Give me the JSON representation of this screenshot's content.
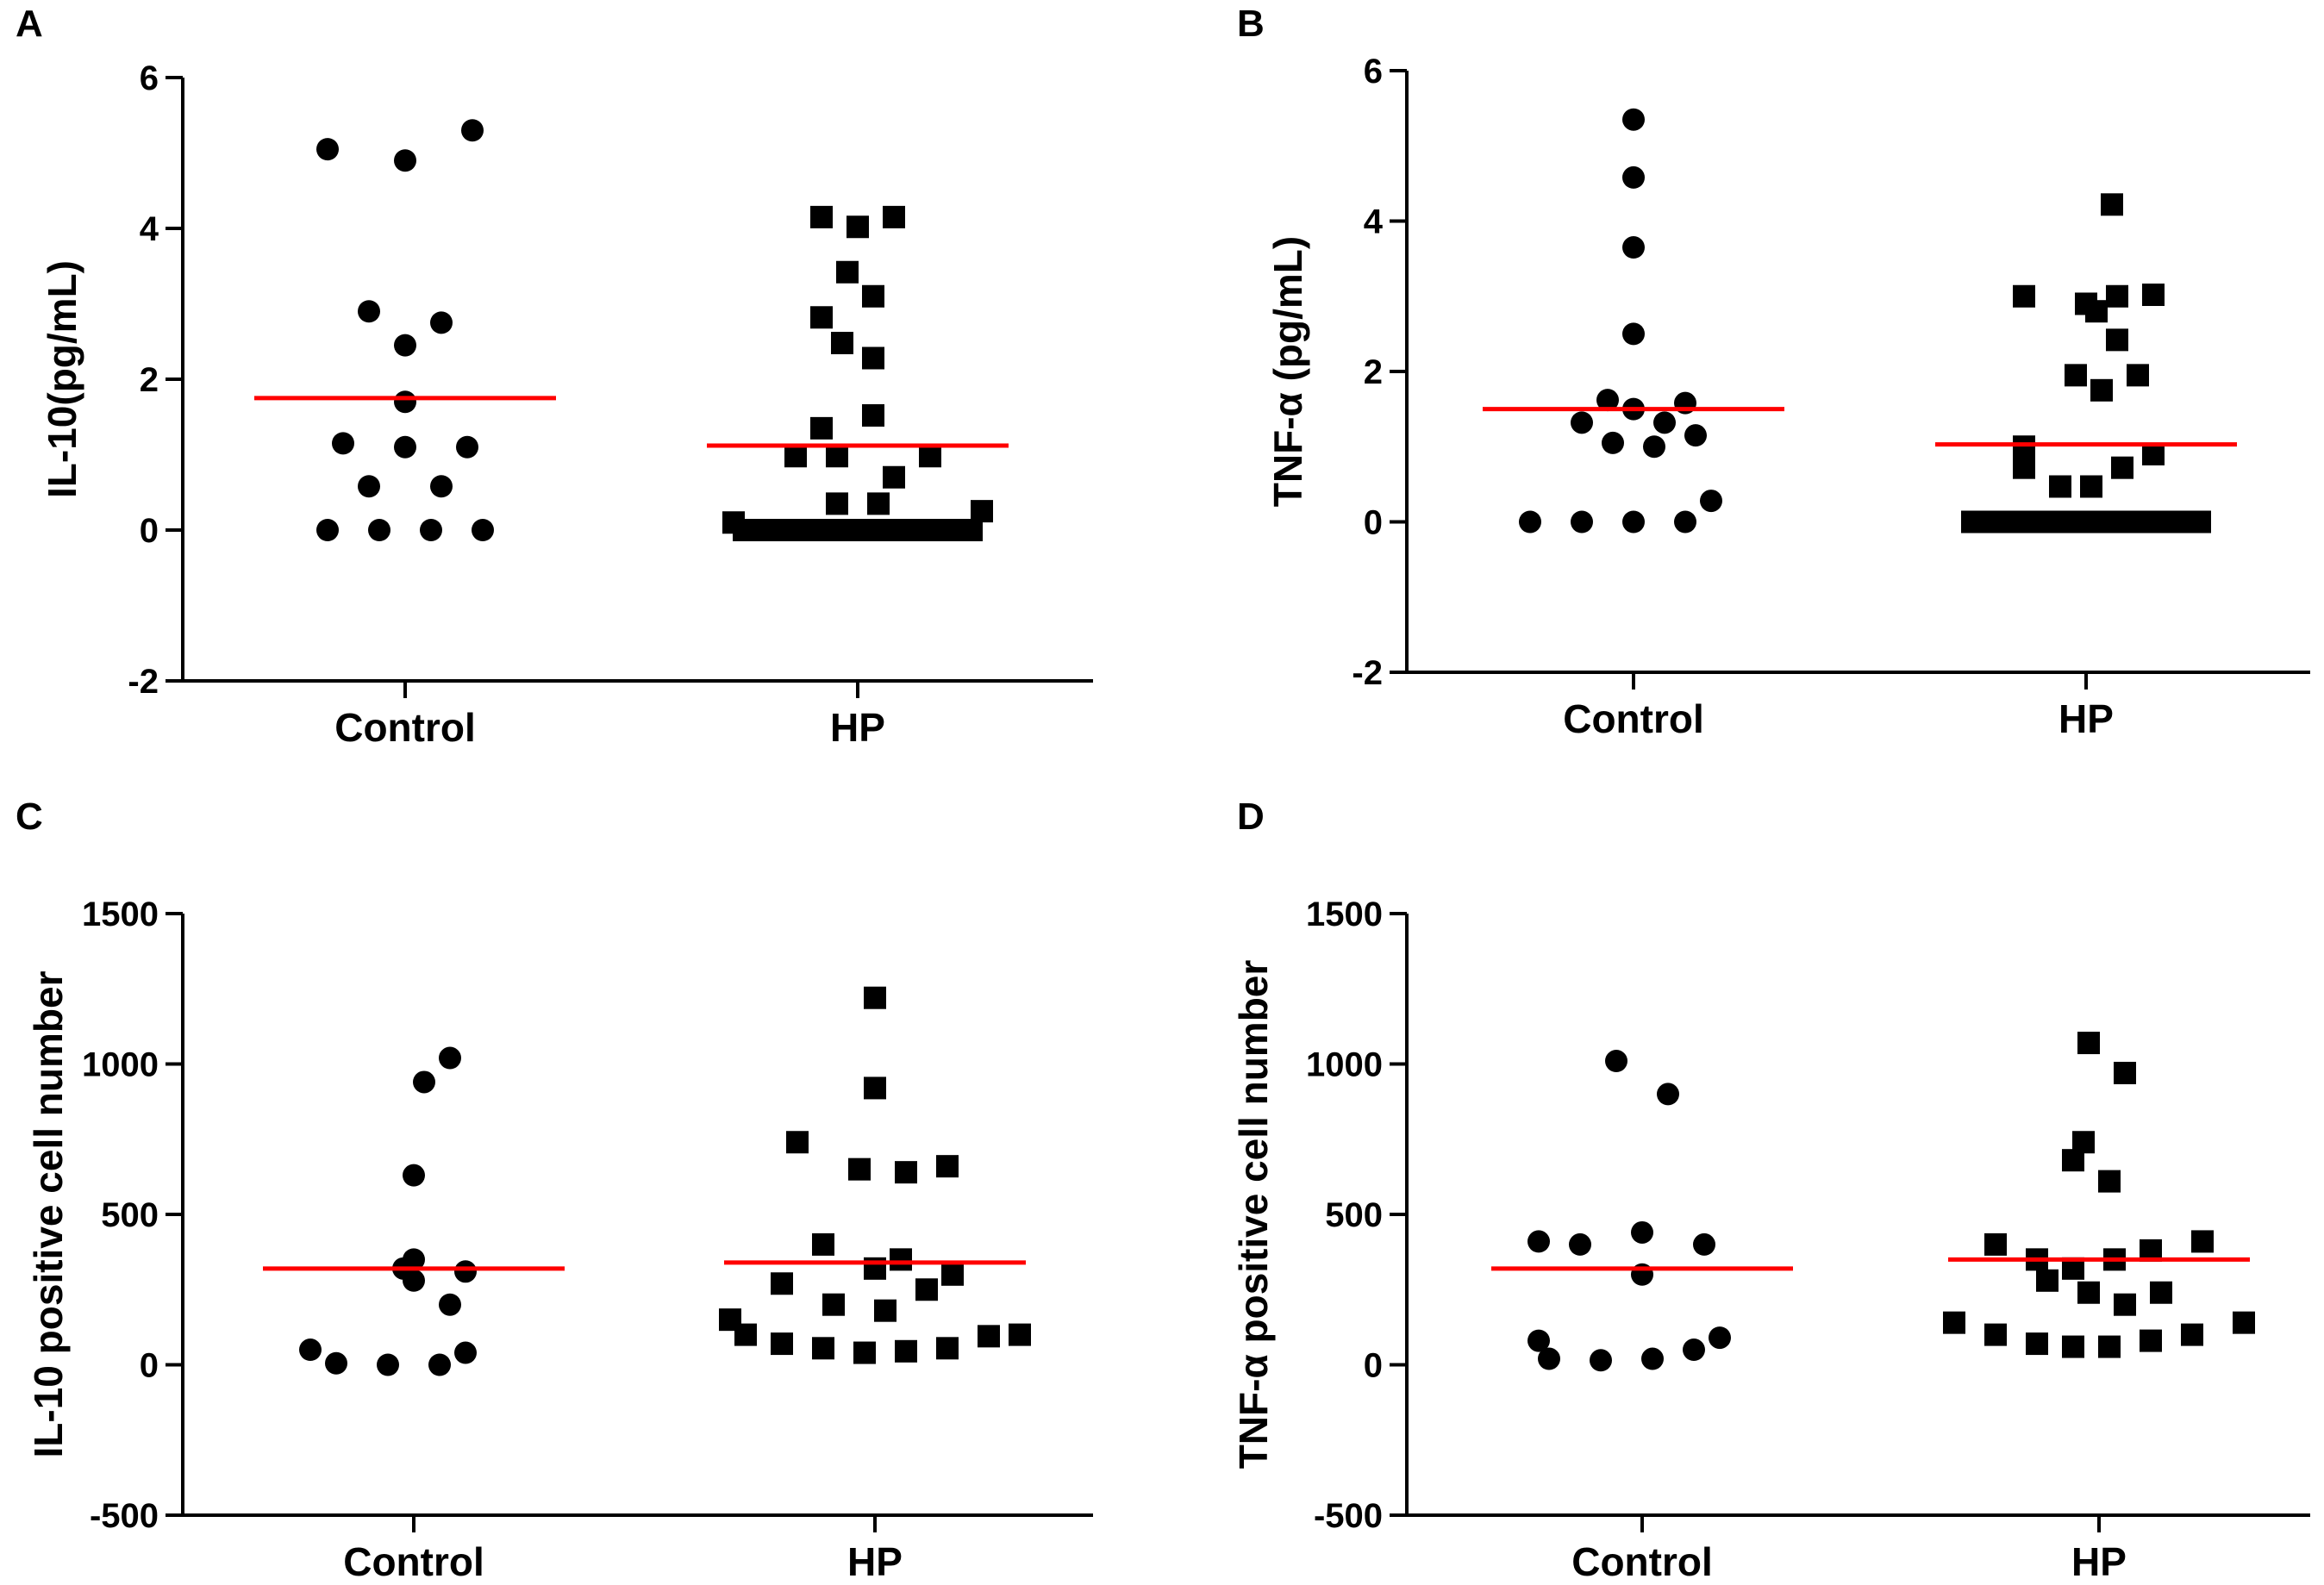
{
  "chart_data": [
    {
      "panel": "A",
      "type": "scatter",
      "ylabel": "IL-10(pg/mL)",
      "xlabel": "",
      "categories": [
        "Control",
        "HP"
      ],
      "ylim": [
        -2,
        6
      ],
      "yticks": [
        -2,
        0,
        2,
        4,
        6
      ],
      "yticklabels": [
        "-2",
        "0",
        "2",
        "4",
        "6"
      ],
      "mean_color": "#ff0000",
      "series": [
        {
          "name": "Control",
          "marker": "circle",
          "mean": 1.75,
          "points": [
            [
              -0.15,
              5.05
            ],
            [
              0.0,
              4.9
            ],
            [
              0.13,
              5.3
            ],
            [
              -0.07,
              2.9
            ],
            [
              0.07,
              2.75
            ],
            [
              0.0,
              2.45
            ],
            [
              0.0,
              1.7
            ],
            [
              -0.12,
              1.15
            ],
            [
              0.0,
              1.1
            ],
            [
              0.12,
              1.1
            ],
            [
              -0.07,
              0.58
            ],
            [
              0.07,
              0.58
            ],
            [
              -0.15,
              0.0
            ],
            [
              -0.05,
              0.0
            ],
            [
              0.05,
              0.0
            ],
            [
              0.15,
              0.0
            ]
          ]
        },
        {
          "name": "HP",
          "marker": "square",
          "mean": 1.12,
          "points": [
            [
              -0.07,
              4.15
            ],
            [
              0.0,
              4.02
            ],
            [
              0.07,
              4.15
            ],
            [
              -0.02,
              3.42
            ],
            [
              0.03,
              3.1
            ],
            [
              -0.07,
              2.82
            ],
            [
              -0.03,
              2.48
            ],
            [
              0.03,
              2.28
            ],
            [
              0.03,
              1.52
            ],
            [
              -0.07,
              1.35
            ],
            [
              -0.12,
              0.98
            ],
            [
              -0.04,
              0.98
            ],
            [
              0.14,
              0.98
            ],
            [
              0.07,
              0.7
            ],
            [
              -0.04,
              0.35
            ],
            [
              0.04,
              0.35
            ],
            [
              -0.24,
              0.1
            ],
            [
              0.24,
              0.25
            ],
            [
              -0.22,
              0.0
            ],
            [
              -0.18,
              0.0
            ],
            [
              -0.14,
              0.0
            ],
            [
              -0.1,
              0.0
            ],
            [
              -0.06,
              0.0
            ],
            [
              -0.02,
              0.0
            ],
            [
              0.02,
              0.0
            ],
            [
              0.06,
              0.0
            ],
            [
              0.1,
              0.0
            ],
            [
              0.14,
              0.0
            ],
            [
              0.18,
              0.0
            ],
            [
              0.22,
              0.0
            ]
          ]
        }
      ]
    },
    {
      "panel": "B",
      "type": "scatter",
      "ylabel": "TNF-α (pg/mL)",
      "xlabel": "",
      "categories": [
        "Control",
        "HP"
      ],
      "ylim": [
        -2,
        6
      ],
      "yticks": [
        -2,
        0,
        2,
        4,
        6
      ],
      "yticklabels": [
        "-2",
        "0",
        "2",
        "4",
        "6"
      ],
      "mean_color": "#ff0000",
      "series": [
        {
          "name": "Control",
          "marker": "circle",
          "mean": 1.5,
          "points": [
            [
              0.0,
              5.35
            ],
            [
              0.0,
              4.58
            ],
            [
              0.0,
              3.65
            ],
            [
              0.0,
              2.5
            ],
            [
              -0.05,
              1.62
            ],
            [
              0.1,
              1.58
            ],
            [
              0.0,
              1.5
            ],
            [
              -0.1,
              1.32
            ],
            [
              0.06,
              1.32
            ],
            [
              -0.04,
              1.05
            ],
            [
              0.04,
              1.0
            ],
            [
              0.12,
              1.15
            ],
            [
              0.15,
              0.28
            ],
            [
              -0.2,
              0.0
            ],
            [
              -0.1,
              0.0
            ],
            [
              0.0,
              0.0
            ],
            [
              0.1,
              0.0
            ]
          ]
        },
        {
          "name": "HP",
          "marker": "square",
          "mean": 1.03,
          "points": [
            [
              0.05,
              4.22
            ],
            [
              -0.12,
              3.0
            ],
            [
              0.0,
              2.9
            ],
            [
              0.02,
              2.8
            ],
            [
              0.06,
              3.0
            ],
            [
              0.13,
              3.02
            ],
            [
              0.06,
              2.42
            ],
            [
              -0.02,
              1.95
            ],
            [
              0.03,
              1.75
            ],
            [
              0.1,
              1.95
            ],
            [
              -0.12,
              1.0
            ],
            [
              -0.12,
              0.72
            ],
            [
              0.07,
              0.72
            ],
            [
              0.13,
              0.9
            ],
            [
              -0.05,
              0.47
            ],
            [
              0.01,
              0.47
            ],
            [
              -0.22,
              0.0
            ],
            [
              -0.18,
              0.0
            ],
            [
              -0.14,
              0.0
            ],
            [
              -0.1,
              0.0
            ],
            [
              -0.06,
              0.0
            ],
            [
              -0.02,
              0.0
            ],
            [
              0.02,
              0.0
            ],
            [
              0.06,
              0.0
            ],
            [
              0.1,
              0.0
            ],
            [
              0.14,
              0.0
            ],
            [
              0.18,
              0.0
            ],
            [
              0.22,
              0.0
            ]
          ]
        }
      ]
    },
    {
      "panel": "C",
      "type": "scatter",
      "ylabel": "IL-10 positive cell number",
      "xlabel": "",
      "categories": [
        "Control",
        "HP"
      ],
      "ylim": [
        -500,
        1500
      ],
      "yticks": [
        -500,
        0,
        500,
        1000,
        1500
      ],
      "yticklabels": [
        "-500",
        "0",
        "500",
        "1000",
        "1500"
      ],
      "mean_color": "#ff0000",
      "series": [
        {
          "name": "Control",
          "marker": "circle",
          "mean": 320,
          "points": [
            [
              0.07,
              1020
            ],
            [
              0.02,
              940
            ],
            [
              0.0,
              630
            ],
            [
              -0.02,
              320
            ],
            [
              0.0,
              350
            ],
            [
              0.1,
              310
            ],
            [
              0.0,
              280
            ],
            [
              0.07,
              200
            ],
            [
              -0.2,
              50
            ],
            [
              0.1,
              40
            ],
            [
              -0.15,
              5
            ],
            [
              -0.05,
              0
            ],
            [
              0.05,
              0
            ]
          ]
        },
        {
          "name": "HP",
          "marker": "square",
          "mean": 340,
          "points": [
            [
              0.0,
              1220
            ],
            [
              0.0,
              920
            ],
            [
              -0.15,
              740
            ],
            [
              -0.03,
              650
            ],
            [
              0.06,
              640
            ],
            [
              0.14,
              660
            ],
            [
              -0.1,
              400
            ],
            [
              0.05,
              350
            ],
            [
              0.0,
              320
            ],
            [
              0.15,
              300
            ],
            [
              -0.18,
              270
            ],
            [
              -0.08,
              200
            ],
            [
              0.02,
              180
            ],
            [
              0.1,
              250
            ],
            [
              -0.28,
              150
            ],
            [
              -0.25,
              100
            ],
            [
              -0.18,
              70
            ],
            [
              -0.1,
              55
            ],
            [
              -0.02,
              40
            ],
            [
              0.06,
              45
            ],
            [
              0.14,
              55
            ],
            [
              0.22,
              95
            ],
            [
              0.28,
              100
            ]
          ]
        }
      ]
    },
    {
      "panel": "D",
      "type": "scatter",
      "ylabel": "TNF-α positive cell number",
      "xlabel": "",
      "categories": [
        "Control",
        "HP"
      ],
      "ylim": [
        -500,
        1500
      ],
      "yticks": [
        -500,
        0,
        500,
        1000,
        1500
      ],
      "yticklabels": [
        "-500",
        "0",
        "500",
        "1000",
        "1500"
      ],
      "mean_color": "#ff0000",
      "series": [
        {
          "name": "Control",
          "marker": "circle",
          "mean": 320,
          "points": [
            [
              -0.05,
              1010
            ],
            [
              0.05,
              900
            ],
            [
              -0.2,
              410
            ],
            [
              -0.12,
              400
            ],
            [
              0.0,
              440
            ],
            [
              0.12,
              400
            ],
            [
              0.0,
              300
            ],
            [
              -0.2,
              80
            ],
            [
              0.15,
              90
            ],
            [
              -0.18,
              20
            ],
            [
              -0.08,
              15
            ],
            [
              0.02,
              20
            ],
            [
              0.1,
              50
            ]
          ]
        },
        {
          "name": "HP",
          "marker": "square",
          "mean": 350,
          "points": [
            [
              -0.02,
              1070
            ],
            [
              0.05,
              970
            ],
            [
              -0.03,
              740
            ],
            [
              -0.05,
              680
            ],
            [
              0.02,
              610
            ],
            [
              -0.2,
              400
            ],
            [
              -0.12,
              350
            ],
            [
              -0.05,
              320
            ],
            [
              0.03,
              350
            ],
            [
              0.1,
              380
            ],
            [
              0.2,
              410
            ],
            [
              -0.1,
              280
            ],
            [
              -0.02,
              240
            ],
            [
              0.05,
              200
            ],
            [
              0.12,
              240
            ],
            [
              -0.28,
              140
            ],
            [
              -0.2,
              100
            ],
            [
              -0.12,
              70
            ],
            [
              -0.05,
              60
            ],
            [
              0.02,
              60
            ],
            [
              0.1,
              80
            ],
            [
              0.18,
              100
            ],
            [
              0.28,
              140
            ]
          ]
        }
      ]
    }
  ]
}
